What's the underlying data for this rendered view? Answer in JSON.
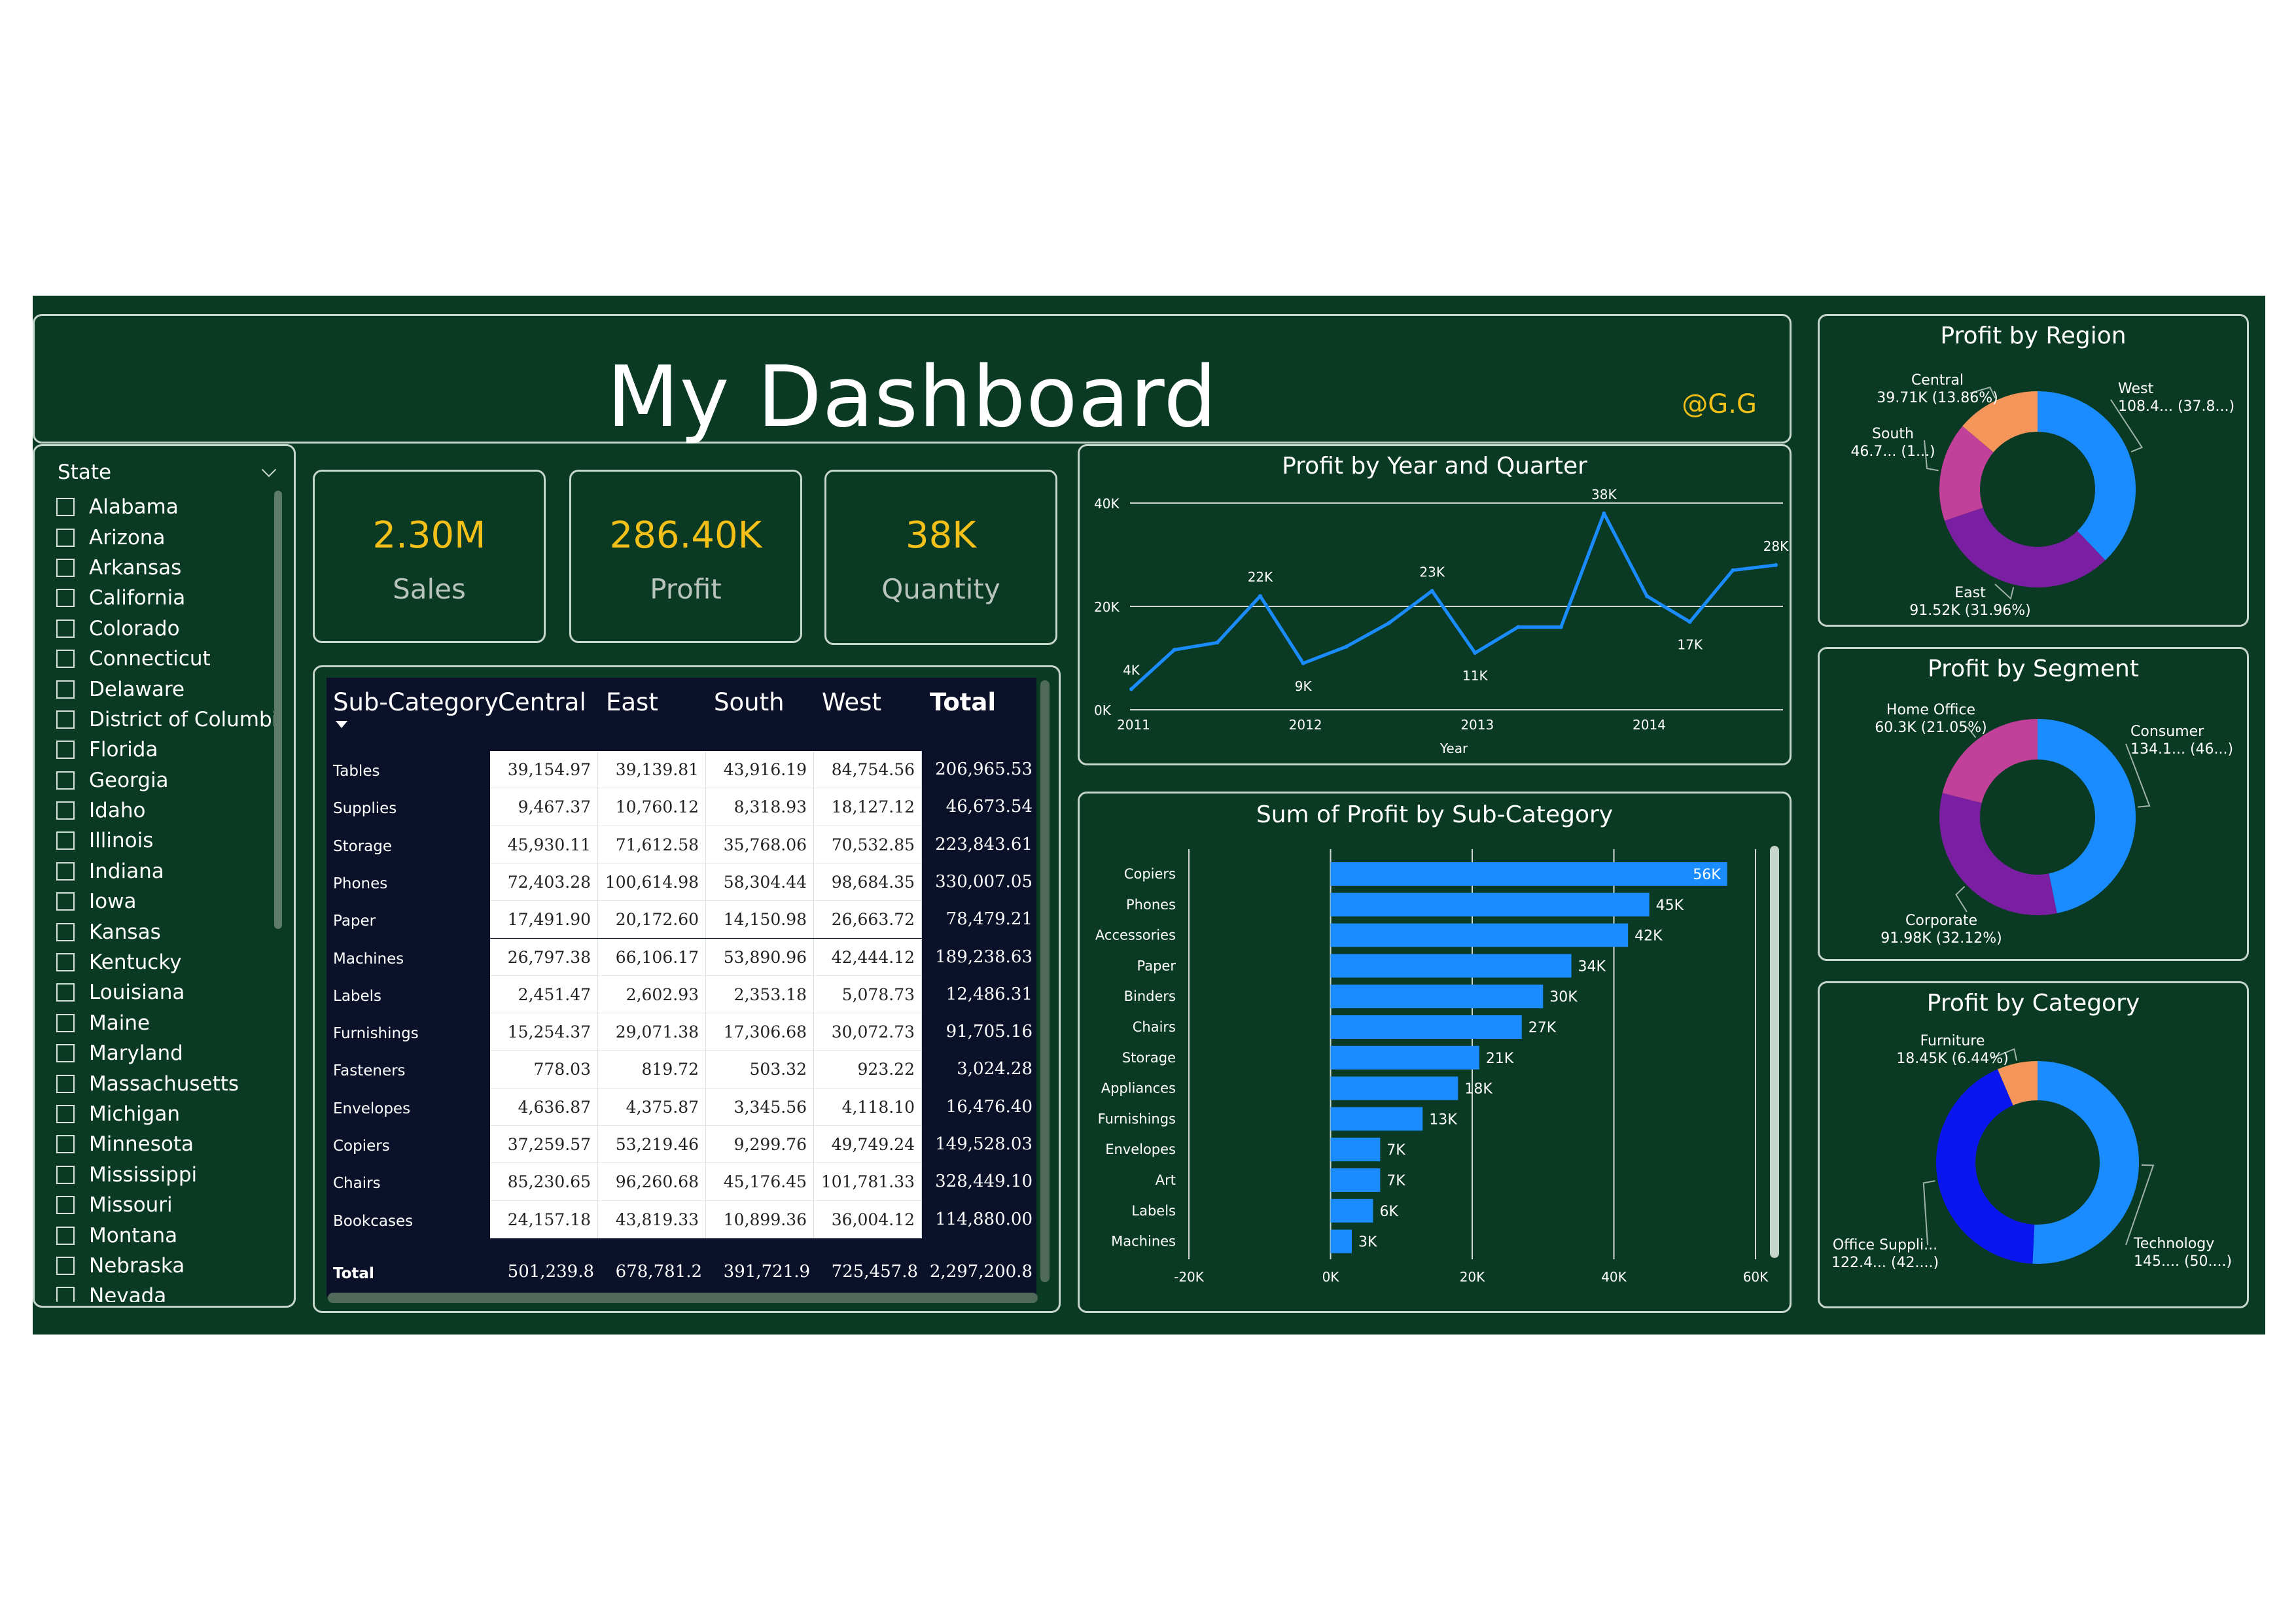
{
  "header": {
    "title": "My Dashboard",
    "author": "@G.G"
  },
  "slicer": {
    "title": "State",
    "items": [
      "Alabama",
      "Arizona",
      "Arkansas",
      "California",
      "Colorado",
      "Connecticut",
      "Delaware",
      "District of Columbia",
      "Florida",
      "Georgia",
      "Idaho",
      "Illinois",
      "Indiana",
      "Iowa",
      "Kansas",
      "Kentucky",
      "Louisiana",
      "Maine",
      "Maryland",
      "Massachusetts",
      "Michigan",
      "Minnesota",
      "Mississippi",
      "Missouri",
      "Montana",
      "Nebraska",
      "Nevada"
    ]
  },
  "kpis": [
    {
      "value": "2.30M",
      "label": "Sales"
    },
    {
      "value": "286.40K",
      "label": "Profit"
    },
    {
      "value": "38K",
      "label": "Quantity"
    }
  ],
  "matrix": {
    "headers": [
      "Sub-Category",
      "Central",
      "East",
      "South",
      "West",
      "Total"
    ],
    "rows": [
      {
        "cat": "Tables",
        "vals": [
          "39,154.97",
          "39,139.81",
          "43,916.19",
          "84,754.56"
        ],
        "total": "206,965.53"
      },
      {
        "cat": "Supplies",
        "vals": [
          "9,467.37",
          "10,760.12",
          "8,318.93",
          "18,127.12"
        ],
        "total": "46,673.54"
      },
      {
        "cat": "Storage",
        "vals": [
          "45,930.11",
          "71,612.58",
          "35,768.06",
          "70,532.85"
        ],
        "total": "223,843.61"
      },
      {
        "cat": "Phones",
        "vals": [
          "72,403.28",
          "100,614.98",
          "58,304.44",
          "98,684.35"
        ],
        "total": "330,007.05"
      },
      {
        "cat": "Paper",
        "vals": [
          "17,491.90",
          "20,172.60",
          "14,150.98",
          "26,663.72"
        ],
        "total": "78,479.21"
      },
      {
        "cat": "Machines",
        "vals": [
          "26,797.38",
          "66,106.17",
          "53,890.96",
          "42,444.12"
        ],
        "total": "189,238.63"
      },
      {
        "cat": "Labels",
        "vals": [
          "2,451.47",
          "2,602.93",
          "2,353.18",
          "5,078.73"
        ],
        "total": "12,486.31"
      },
      {
        "cat": "Furnishings",
        "vals": [
          "15,254.37",
          "29,071.38",
          "17,306.68",
          "30,072.73"
        ],
        "total": "91,705.16"
      },
      {
        "cat": "Fasteners",
        "vals": [
          "778.03",
          "819.72",
          "503.32",
          "923.22"
        ],
        "total": "3,024.28"
      },
      {
        "cat": "Envelopes",
        "vals": [
          "4,636.87",
          "4,375.87",
          "3,345.56",
          "4,118.10"
        ],
        "total": "16,476.40"
      },
      {
        "cat": "Copiers",
        "vals": [
          "37,259.57",
          "53,219.46",
          "9,299.76",
          "49,749.24"
        ],
        "total": "149,528.03"
      },
      {
        "cat": "Chairs",
        "vals": [
          "85,230.65",
          "96,260.68",
          "45,176.45",
          "101,781.33"
        ],
        "total": "328,449.10"
      },
      {
        "cat": "Bookcases",
        "vals": [
          "24,157.18",
          "43,819.33",
          "10,899.36",
          "36,004.12"
        ],
        "total": "114,880.00"
      }
    ],
    "total_row": {
      "cat": "Total",
      "vals": [
        "501,239.8",
        "678,781.2",
        "391,721.9",
        "725,457.8"
      ],
      "total": "2,297,200.8"
    }
  },
  "chart_data": [
    {
      "type": "line",
      "title": "Profit by Year and Quarter",
      "xlabel": "Year",
      "ylabel": "",
      "ylim": [
        0,
        40000
      ],
      "y_ticks": [
        "0K",
        "20K",
        "40K"
      ],
      "x_ticks": [
        "2011",
        "2012",
        "2013",
        "2014"
      ],
      "color": "#1a8cff",
      "x": [
        "2011 Q1",
        "2011 Q2",
        "2011 Q3",
        "2011 Q4",
        "2012 Q1",
        "2012 Q2",
        "2012 Q3",
        "2012 Q4",
        "2013 Q1",
        "2013 Q2",
        "2013 Q3",
        "2013 Q4",
        "2014 Q1",
        "2014 Q2",
        "2014 Q3",
        "2014 Q4"
      ],
      "values": [
        4000,
        11600,
        13000,
        22000,
        9000,
        12200,
        16800,
        23000,
        11000,
        16000,
        16000,
        38000,
        22000,
        17000,
        27000,
        28000
      ],
      "point_labels": [
        "4K",
        "",
        "",
        "22K",
        "9K",
        "",
        "",
        "23K",
        "11K",
        "",
        "",
        "38K",
        "",
        "17K",
        "",
        "28K"
      ]
    },
    {
      "type": "bar",
      "orientation": "horizontal",
      "title": "Sum of Profit by Sub-Category",
      "xlim": [
        -20000,
        60000
      ],
      "x_ticks": [
        "-20K",
        "0K",
        "20K",
        "40K",
        "60K"
      ],
      "color": "#1a8cff",
      "categories": [
        "Copiers",
        "Phones",
        "Accessories",
        "Paper",
        "Binders",
        "Chairs",
        "Storage",
        "Appliances",
        "Furnishings",
        "Envelopes",
        "Art",
        "Labels",
        "Machines"
      ],
      "values": [
        56000,
        45000,
        42000,
        34000,
        30000,
        27000,
        21000,
        18000,
        13000,
        7000,
        7000,
        6000,
        3000
      ],
      "value_labels": [
        "56K",
        "45K",
        "42K",
        "34K",
        "30K",
        "27K",
        "21K",
        "18K",
        "13K",
        "7K",
        "7K",
        "6K",
        "3K"
      ]
    },
    {
      "type": "pie",
      "style": "donut",
      "title": "Profit by Region",
      "slices": [
        {
          "name": "West",
          "value": 108418,
          "label_name": "West",
          "label_value": "108.4... (37.8...)",
          "color": "#1a8cff"
        },
        {
          "name": "East",
          "value": 91520,
          "label_name": "East",
          "label_value": "91.52K (31.96%)",
          "color": "#7a1fa2"
        },
        {
          "name": "South",
          "value": 46750,
          "label_name": "South",
          "label_value": "46.7... (1...)",
          "color": "#c0409a"
        },
        {
          "name": "Central",
          "value": 39710,
          "label_name": "Central",
          "label_value": "39.71K (13.86%)",
          "color": "#f4965a"
        }
      ]
    },
    {
      "type": "pie",
      "style": "donut",
      "title": "Profit by Segment",
      "slices": [
        {
          "name": "Consumer",
          "value": 134120,
          "label_name": "Consumer",
          "label_value": "134.1... (46...)",
          "color": "#1a8cff"
        },
        {
          "name": "Corporate",
          "value": 91980,
          "label_name": "Corporate",
          "label_value": "91.98K (32.12%)",
          "color": "#7a1fa2"
        },
        {
          "name": "Home Office",
          "value": 60300,
          "label_name": "Home Office",
          "label_value": "60.3K (21.05%)",
          "color": "#c0409a"
        }
      ]
    },
    {
      "type": "pie",
      "style": "donut",
      "title": "Profit by Category",
      "slices": [
        {
          "name": "Technology",
          "value": 145450,
          "label_name": "Technology",
          "label_value": "145.... (50....)",
          "color": "#1a8cff"
        },
        {
          "name": "Office Supplies",
          "value": 122490,
          "label_name": "Office Suppli...",
          "label_value": "122.4... (42....)",
          "color": "#0a16f0"
        },
        {
          "name": "Furniture",
          "value": 18450,
          "label_name": "Furniture",
          "label_value": "18.45K (6.44%)",
          "color": "#f4965a"
        }
      ]
    }
  ]
}
